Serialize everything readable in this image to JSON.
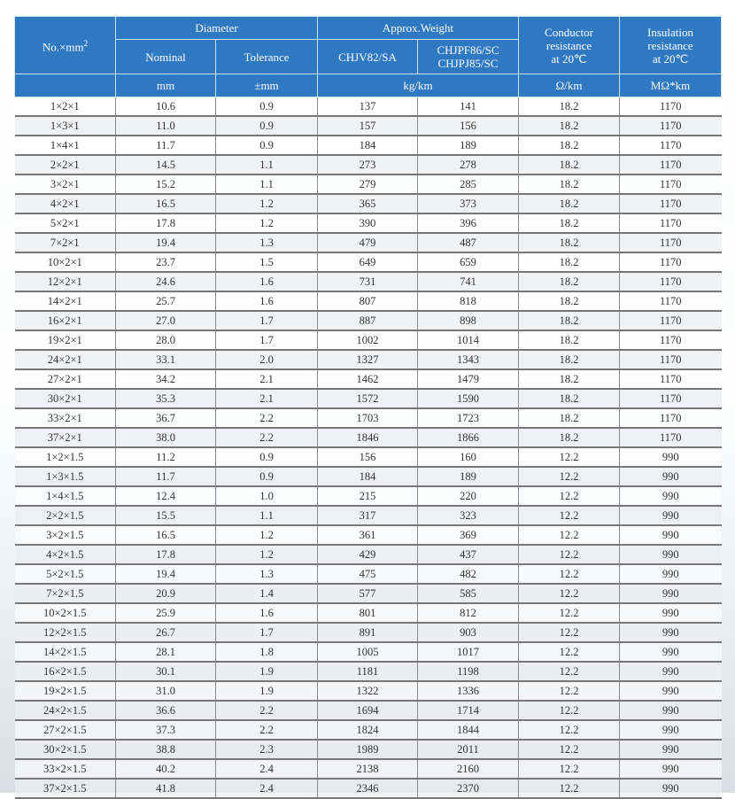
{
  "header": {
    "col0": "No.×mm",
    "col0_sup": "2",
    "diameter": "Diameter",
    "nominal": "Nominal",
    "tolerance": "Tolerance",
    "weight": "Approx.Weight",
    "w1": "CHJV82/SA",
    "w2a": "CHJPF86/SC",
    "w2b": "CHJPJ85/SC",
    "conductor": [
      "Conductor",
      "resistance",
      "at 20℃"
    ],
    "insulation": [
      "Insulation",
      "resistance",
      "at 20℃"
    ],
    "units": {
      "nominal": "mm",
      "tolerance": "±mm",
      "weight": "kg/km",
      "conductor": "Ω/km",
      "insulation": "MΩ*km"
    }
  },
  "colors": {
    "header_bg": "#2f78c2",
    "header_text": "#ffffff"
  },
  "rows": [
    [
      "1×2×1",
      "10.6",
      "0.9",
      "137",
      "141",
      "18.2",
      "1170"
    ],
    [
      "1×3×1",
      "11.0",
      "0.9",
      "157",
      "156",
      "18.2",
      "1170"
    ],
    [
      "1×4×1",
      "11.7",
      "0.9",
      "184",
      "189",
      "18.2",
      "1170"
    ],
    [
      "2×2×1",
      "14.5",
      "1.1",
      "273",
      "278",
      "18.2",
      "1170"
    ],
    [
      "3×2×1",
      "15.2",
      "1.1",
      "279",
      "285",
      "18.2",
      "1170"
    ],
    [
      "4×2×1",
      "16.5",
      "1.2",
      "365",
      "373",
      "18.2",
      "1170"
    ],
    [
      "5×2×1",
      "17.8",
      "1.2",
      "390",
      "396",
      "18.2",
      "1170"
    ],
    [
      "7×2×1",
      "19.4",
      "1.3",
      "479",
      "487",
      "18.2",
      "1170"
    ],
    [
      "10×2×1",
      "23.7",
      "1.5",
      "649",
      "659",
      "18.2",
      "1170"
    ],
    [
      "12×2×1",
      "24.6",
      "1.6",
      "731",
      "741",
      "18.2",
      "1170"
    ],
    [
      "14×2×1",
      "25.7",
      "1.6",
      "807",
      "818",
      "18.2",
      "1170"
    ],
    [
      "16×2×1",
      "27.0",
      "1.7",
      "887",
      "898",
      "18.2",
      "1170"
    ],
    [
      "19×2×1",
      "28.0",
      "1.7",
      "1002",
      "1014",
      "18.2",
      "1170"
    ],
    [
      "24×2×1",
      "33.1",
      "2.0",
      "1327",
      "1343",
      "18.2",
      "1170"
    ],
    [
      "27×2×1",
      "34.2",
      "2.1",
      "1462",
      "1479",
      "18.2",
      "1170"
    ],
    [
      "30×2×1",
      "35.3",
      "2.1",
      "1572",
      "1590",
      "18.2",
      "1170"
    ],
    [
      "33×2×1",
      "36.7",
      "2.2",
      "1703",
      "1723",
      "18.2",
      "1170"
    ],
    [
      "37×2×1",
      "38.0",
      "2.2",
      "1846",
      "1866",
      "18.2",
      "1170"
    ],
    [
      "1×2×1.5",
      "11.2",
      "0.9",
      "156",
      "160",
      "12.2",
      "990"
    ],
    [
      "1×3×1.5",
      "11.7",
      "0.9",
      "184",
      "189",
      "12.2",
      "990"
    ],
    [
      "1×4×1.5",
      "12.4",
      "1.0",
      "215",
      "220",
      "12.2",
      "990"
    ],
    [
      "2×2×1.5",
      "15.5",
      "1.1",
      "317",
      "323",
      "12.2",
      "990"
    ],
    [
      "3×2×1.5",
      "16.5",
      "1.2",
      "361",
      "369",
      "12.2",
      "990"
    ],
    [
      "4×2×1.5",
      "17.8",
      "1.2",
      "429",
      "437",
      "12.2",
      "990"
    ],
    [
      "5×2×1.5",
      "19.4",
      "1.3",
      "475",
      "482",
      "12.2",
      "990"
    ],
    [
      "7×2×1.5",
      "20.9",
      "1.4",
      "577",
      "585",
      "12.2",
      "990"
    ],
    [
      "10×2×1.5",
      "25.9",
      "1.6",
      "801",
      "812",
      "12.2",
      "990"
    ],
    [
      "12×2×1.5",
      "26.7",
      "1.7",
      "891",
      "903",
      "12.2",
      "990"
    ],
    [
      "14×2×1.5",
      "28.1",
      "1.8",
      "1005",
      "1017",
      "12.2",
      "990"
    ],
    [
      "16×2×1.5",
      "30.1",
      "1.9",
      "1181",
      "1198",
      "12.2",
      "990"
    ],
    [
      "19×2×1.5",
      "31.0",
      "1.9",
      "1322",
      "1336",
      "12.2",
      "990"
    ],
    [
      "24×2×1.5",
      "36.6",
      "2.2",
      "1694",
      "1714",
      "12.2",
      "990"
    ],
    [
      "27×2×1.5",
      "37.3",
      "2.2",
      "1824",
      "1844",
      "12.2",
      "990"
    ],
    [
      "30×2×1.5",
      "38.8",
      "2.3",
      "1989",
      "2011",
      "12.2",
      "990"
    ],
    [
      "33×2×1.5",
      "40.2",
      "2.4",
      "2138",
      "2160",
      "12.2",
      "990"
    ],
    [
      "37×2×1.5",
      "41.8",
      "2.4",
      "2346",
      "2370",
      "12.2",
      "990"
    ]
  ]
}
